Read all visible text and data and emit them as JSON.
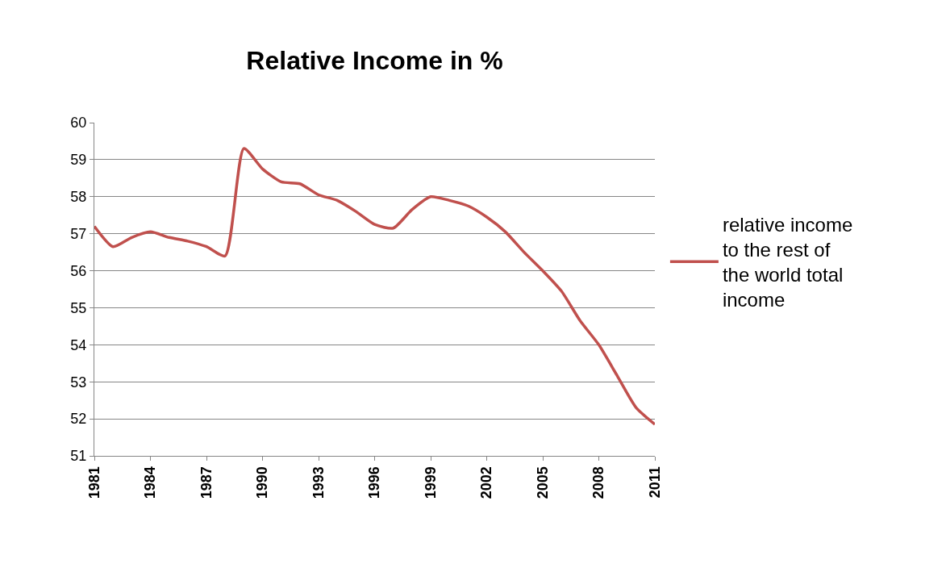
{
  "chart_data": {
    "type": "line",
    "title": "Relative Income in %",
    "x": [
      1981,
      1982,
      1983,
      1984,
      1985,
      1986,
      1987,
      1988,
      1989,
      1990,
      1991,
      1992,
      1993,
      1994,
      1995,
      1996,
      1997,
      1998,
      1999,
      2000,
      2001,
      2002,
      2003,
      2004,
      2005,
      2006,
      2007,
      2008,
      2009,
      2010,
      2011
    ],
    "series": [
      {
        "name": "relative income to the rest of the world total income",
        "color": "#c0504d",
        "values": [
          57.2,
          56.65,
          56.9,
          57.05,
          56.9,
          56.8,
          56.65,
          56.4,
          59.3,
          58.75,
          58.4,
          58.35,
          58.05,
          57.9,
          57.6,
          57.25,
          57.15,
          57.65,
          58.0,
          57.9,
          57.75,
          57.45,
          57.05,
          56.5,
          56.0,
          55.45,
          54.65,
          54.0,
          53.15,
          52.3,
          51.85
        ]
      }
    ],
    "xlim": [
      1981,
      2011
    ],
    "xticks": [
      1981,
      1984,
      1987,
      1990,
      1993,
      1996,
      1999,
      2002,
      2005,
      2008,
      2011
    ],
    "ylim": [
      51,
      60
    ],
    "yticks": [
      51,
      52,
      53,
      54,
      55,
      56,
      57,
      58,
      59,
      60
    ],
    "grid": "y",
    "legend": "right",
    "marker": "none",
    "line_style": "solid"
  }
}
